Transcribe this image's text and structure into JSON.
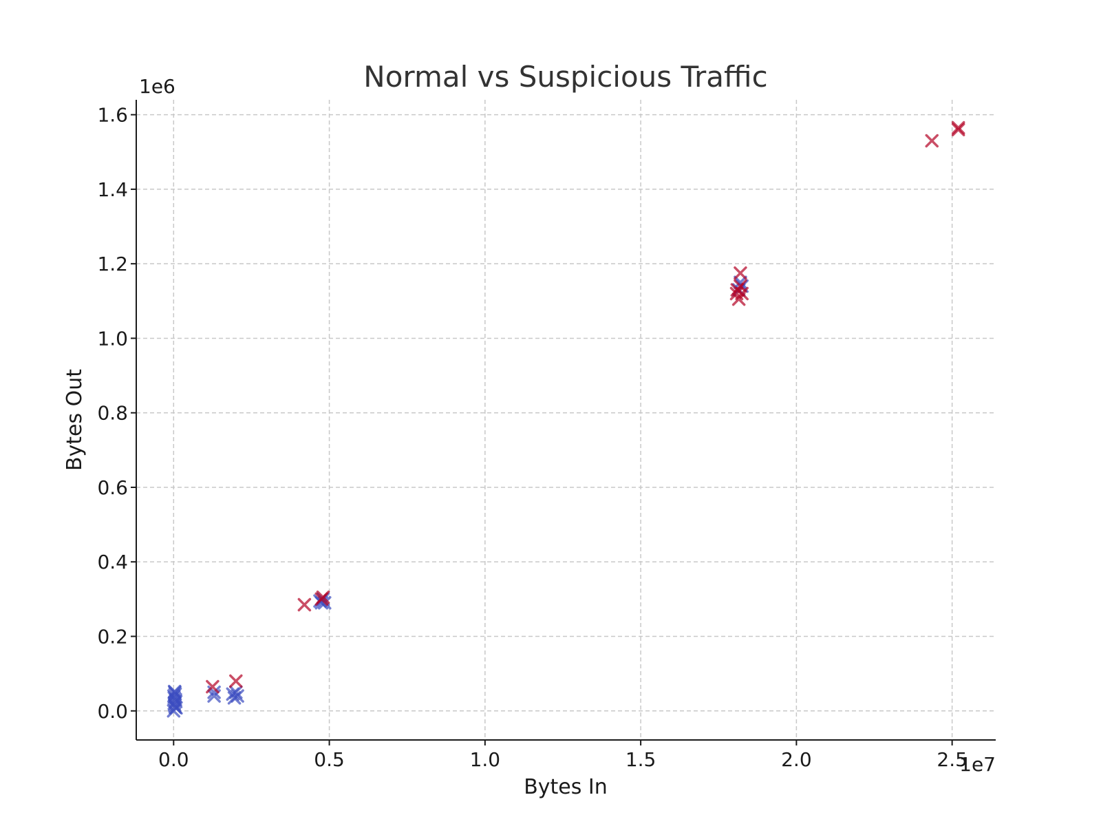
{
  "chart_data": {
    "type": "scatter",
    "title": "Normal vs Suspicious Traffic",
    "xlabel": "Bytes In",
    "ylabel": "Bytes Out",
    "x_offset_label": "1e7",
    "y_offset_label": "1e6",
    "xlim": [
      -0.12,
      2.64
    ],
    "ylim": [
      -0.078,
      1.64
    ],
    "x_ticks": [
      0.0,
      0.5,
      1.0,
      1.5,
      2.0,
      2.5
    ],
    "x_tick_labels": [
      "0.0",
      "0.5",
      "1.0",
      "1.5",
      "2.0",
      "2.5"
    ],
    "y_ticks": [
      0.0,
      0.2,
      0.4,
      0.6,
      0.8,
      1.0,
      1.2,
      1.4,
      1.6
    ],
    "y_tick_labels": [
      "0.0",
      "0.2",
      "0.4",
      "0.6",
      "0.8",
      "1.0",
      "1.2",
      "1.4",
      "1.6"
    ],
    "grid": true,
    "marker": "x",
    "series": [
      {
        "color": "#3b4cc0",
        "points": [
          [
            0.0,
            0.0
          ],
          [
            0.005,
            0.01
          ],
          [
            0.002,
            0.02
          ],
          [
            0.006,
            0.03
          ],
          [
            0.001,
            0.04
          ],
          [
            0.004,
            0.05
          ],
          [
            0.003,
            0.015
          ],
          [
            0.007,
            0.025
          ],
          [
            0.002,
            0.035
          ],
          [
            0.005,
            0.045
          ],
          [
            0.008,
            0.008
          ],
          [
            0.003,
            0.052
          ],
          [
            0.13,
            0.04
          ],
          [
            0.13,
            0.05
          ],
          [
            0.195,
            0.035
          ],
          [
            0.2,
            0.05
          ],
          [
            0.19,
            0.045
          ],
          [
            0.205,
            0.04
          ],
          [
            0.475,
            0.29
          ],
          [
            0.48,
            0.3
          ],
          [
            0.47,
            0.295
          ],
          [
            0.485,
            0.29
          ],
          [
            1.82,
            1.15
          ],
          [
            1.825,
            1.14
          ],
          [
            1.815,
            1.13
          ]
        ]
      },
      {
        "color": "#b40426",
        "points": [
          [
            0.125,
            0.065
          ],
          [
            0.2,
            0.08
          ],
          [
            0.42,
            0.285
          ],
          [
            0.48,
            0.305
          ],
          [
            0.475,
            0.3
          ],
          [
            1.82,
            1.175
          ],
          [
            1.81,
            1.13
          ],
          [
            1.825,
            1.12
          ],
          [
            1.815,
            1.105
          ],
          [
            1.82,
            1.14
          ],
          [
            1.808,
            1.12
          ],
          [
            2.435,
            1.53
          ],
          [
            2.52,
            1.56
          ],
          [
            2.52,
            1.565
          ]
        ]
      }
    ]
  }
}
